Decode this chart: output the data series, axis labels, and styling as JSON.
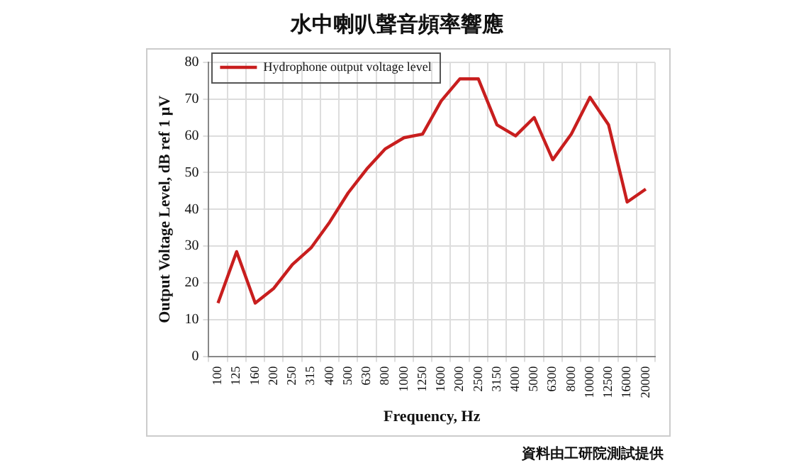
{
  "chart_data": {
    "type": "line",
    "title": "水中喇叭聲音頻率響應",
    "xlabel": "Frequency, Hz",
    "ylabel": "Output Voltage Level, dB ref 1 μV",
    "categories": [
      "100",
      "125",
      "160",
      "200",
      "250",
      "315",
      "400",
      "500",
      "630",
      "800",
      "1000",
      "1250",
      "1600",
      "2000",
      "2500",
      "3150",
      "4000",
      "5000",
      "6300",
      "8000",
      "10000",
      "12500",
      "16000",
      "20000"
    ],
    "series": [
      {
        "name": "Hydrophone output voltage level",
        "color": "#c81e1e",
        "values": [
          14.5,
          28.5,
          14.5,
          18.5,
          25,
          29.5,
          36.5,
          44.5,
          51,
          56.5,
          59.5,
          60.5,
          69.5,
          75.5,
          75.5,
          63,
          60,
          65,
          53.5,
          60.5,
          70.5,
          63,
          42,
          45.5
        ]
      }
    ],
    "ylim": [
      0,
      80
    ],
    "yticks": [
      0,
      10,
      20,
      30,
      40,
      50,
      60,
      70,
      80
    ],
    "grid": true,
    "legend": "top left",
    "marker": "none",
    "line_style": "solid",
    "annotations": [
      "資料由工研院測試提供"
    ]
  }
}
